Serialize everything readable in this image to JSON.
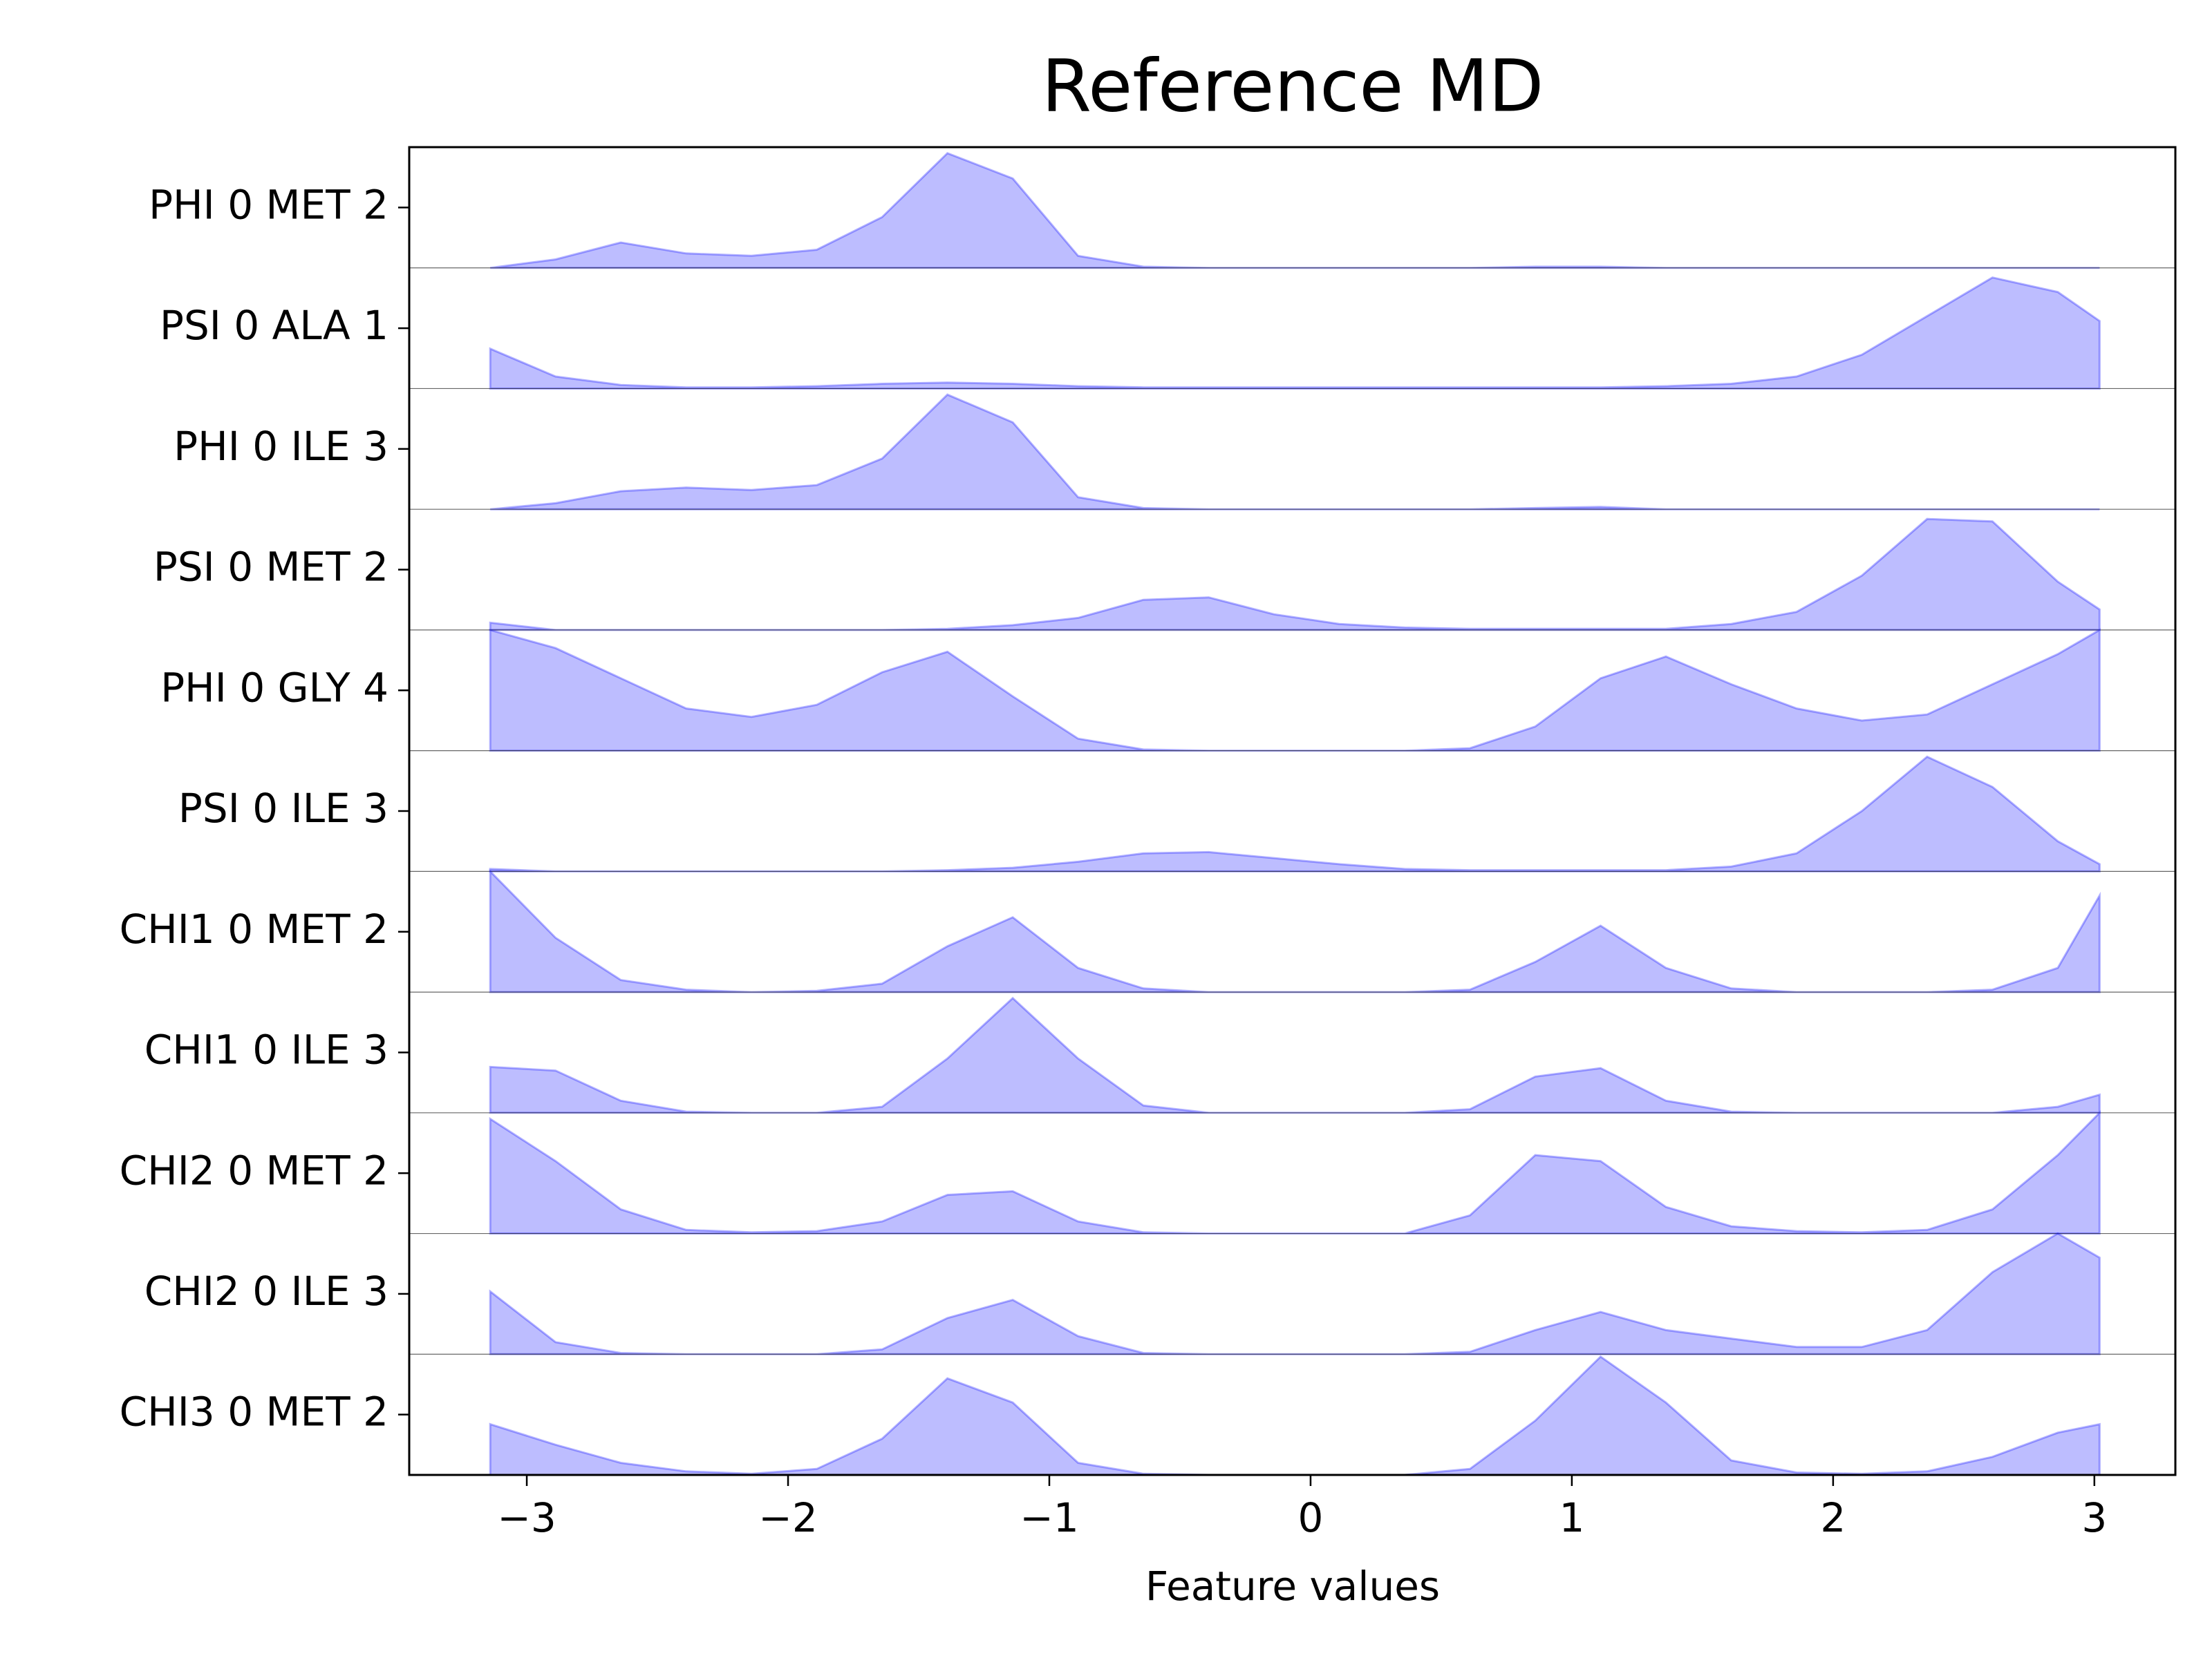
{
  "chart_data": {
    "type": "ridgeline",
    "title": "Reference MD",
    "x_label": "Feature values",
    "color": "#0000ff",
    "xlim": [
      -3.45,
      3.31
    ],
    "xticks": [
      {
        "value": -3,
        "label": "−3"
      },
      {
        "value": -2,
        "label": "−2"
      },
      {
        "value": -1,
        "label": "−1"
      },
      0,
      1,
      2,
      3
    ],
    "ylim": [
      0,
      1
    ],
    "x": [
      -3.14,
      -2.89,
      -2.64,
      -2.39,
      -2.14,
      -1.89,
      -1.64,
      -1.39,
      -1.14,
      -0.89,
      -0.64,
      -0.39,
      -0.14,
      0.11,
      0.36,
      0.61,
      0.86,
      1.11,
      1.36,
      1.61,
      1.86,
      2.11,
      2.36,
      2.61,
      2.86,
      3.02
    ],
    "series": [
      {
        "name": "PHI 0 MET 2",
        "values": [
          0,
          0.07,
          0.21,
          0.12,
          0.1,
          0.15,
          0.42,
          0.95,
          0.74,
          0.1,
          0.01,
          0,
          0,
          0,
          0,
          0,
          0.01,
          0.01,
          0,
          0,
          0,
          0,
          0,
          0,
          0,
          0
        ]
      },
      {
        "name": "PSI 0 ALA 1",
        "values": [
          0.33,
          0.1,
          0.03,
          0.01,
          0.01,
          0.02,
          0.04,
          0.05,
          0.04,
          0.02,
          0.01,
          0.01,
          0.01,
          0.01,
          0.01,
          0.01,
          0.01,
          0.01,
          0.02,
          0.04,
          0.1,
          0.28,
          0.6,
          0.92,
          0.8,
          0.56
        ]
      },
      {
        "name": "PHI 0 ILE 3",
        "values": [
          0,
          0.05,
          0.15,
          0.18,
          0.16,
          0.2,
          0.42,
          0.95,
          0.72,
          0.1,
          0.01,
          0,
          0,
          0,
          0,
          0,
          0.01,
          0.02,
          0,
          0,
          0,
          0,
          0,
          0,
          0,
          0
        ]
      },
      {
        "name": "PSI 0 MET 2",
        "values": [
          0.06,
          0,
          0,
          0,
          0,
          0,
          0,
          0.01,
          0.04,
          0.1,
          0.25,
          0.27,
          0.13,
          0.05,
          0.02,
          0.01,
          0.01,
          0.01,
          0.01,
          0.05,
          0.15,
          0.45,
          0.92,
          0.9,
          0.4,
          0.17
        ]
      },
      {
        "name": "PHI 0 GLY 4",
        "values": [
          1.0,
          0.85,
          0.6,
          0.35,
          0.28,
          0.38,
          0.65,
          0.82,
          0.45,
          0.1,
          0.01,
          0,
          0,
          0,
          0,
          0.02,
          0.2,
          0.6,
          0.78,
          0.55,
          0.35,
          0.25,
          0.3,
          0.55,
          0.8,
          1.0
        ]
      },
      {
        "name": "PSI 0 ILE 3",
        "values": [
          0.02,
          0,
          0,
          0,
          0,
          0,
          0,
          0.01,
          0.03,
          0.08,
          0.15,
          0.16,
          0.11,
          0.06,
          0.02,
          0.01,
          0.01,
          0.01,
          0.01,
          0.04,
          0.15,
          0.5,
          0.95,
          0.7,
          0.25,
          0.06
        ]
      },
      {
        "name": "CHI1 0 MET 2",
        "values": [
          1.0,
          0.45,
          0.1,
          0.02,
          0,
          0.01,
          0.07,
          0.38,
          0.62,
          0.2,
          0.03,
          0,
          0,
          0,
          0,
          0.02,
          0.25,
          0.55,
          0.2,
          0.03,
          0,
          0,
          0,
          0.02,
          0.2,
          0.8
        ]
      },
      {
        "name": "CHI1 0 ILE 3",
        "values": [
          0.38,
          0.35,
          0.1,
          0.01,
          0,
          0,
          0.05,
          0.45,
          0.95,
          0.45,
          0.06,
          0,
          0,
          0,
          0,
          0.03,
          0.3,
          0.37,
          0.1,
          0.01,
          0,
          0,
          0,
          0,
          0.05,
          0.15
        ]
      },
      {
        "name": "CHI2 0 MET 2",
        "values": [
          0.95,
          0.6,
          0.2,
          0.03,
          0.01,
          0.02,
          0.1,
          0.32,
          0.35,
          0.1,
          0.01,
          0,
          0,
          0,
          0,
          0.15,
          0.65,
          0.6,
          0.22,
          0.06,
          0.02,
          0.01,
          0.03,
          0.2,
          0.65,
          1.0
        ]
      },
      {
        "name": "CHI2 0 ILE 3",
        "values": [
          0.52,
          0.1,
          0.01,
          0,
          0,
          0,
          0.04,
          0.3,
          0.45,
          0.15,
          0.01,
          0,
          0,
          0,
          0,
          0.02,
          0.2,
          0.35,
          0.2,
          0.13,
          0.06,
          0.06,
          0.2,
          0.68,
          1.0,
          0.8
        ]
      },
      {
        "name": "CHI3 0 MET 2",
        "values": [
          0.42,
          0.25,
          0.1,
          0.03,
          0.01,
          0.05,
          0.3,
          0.8,
          0.6,
          0.1,
          0.01,
          0,
          0,
          0,
          0,
          0.05,
          0.45,
          0.98,
          0.6,
          0.12,
          0.02,
          0.01,
          0.03,
          0.15,
          0.35,
          0.42
        ]
      }
    ]
  }
}
